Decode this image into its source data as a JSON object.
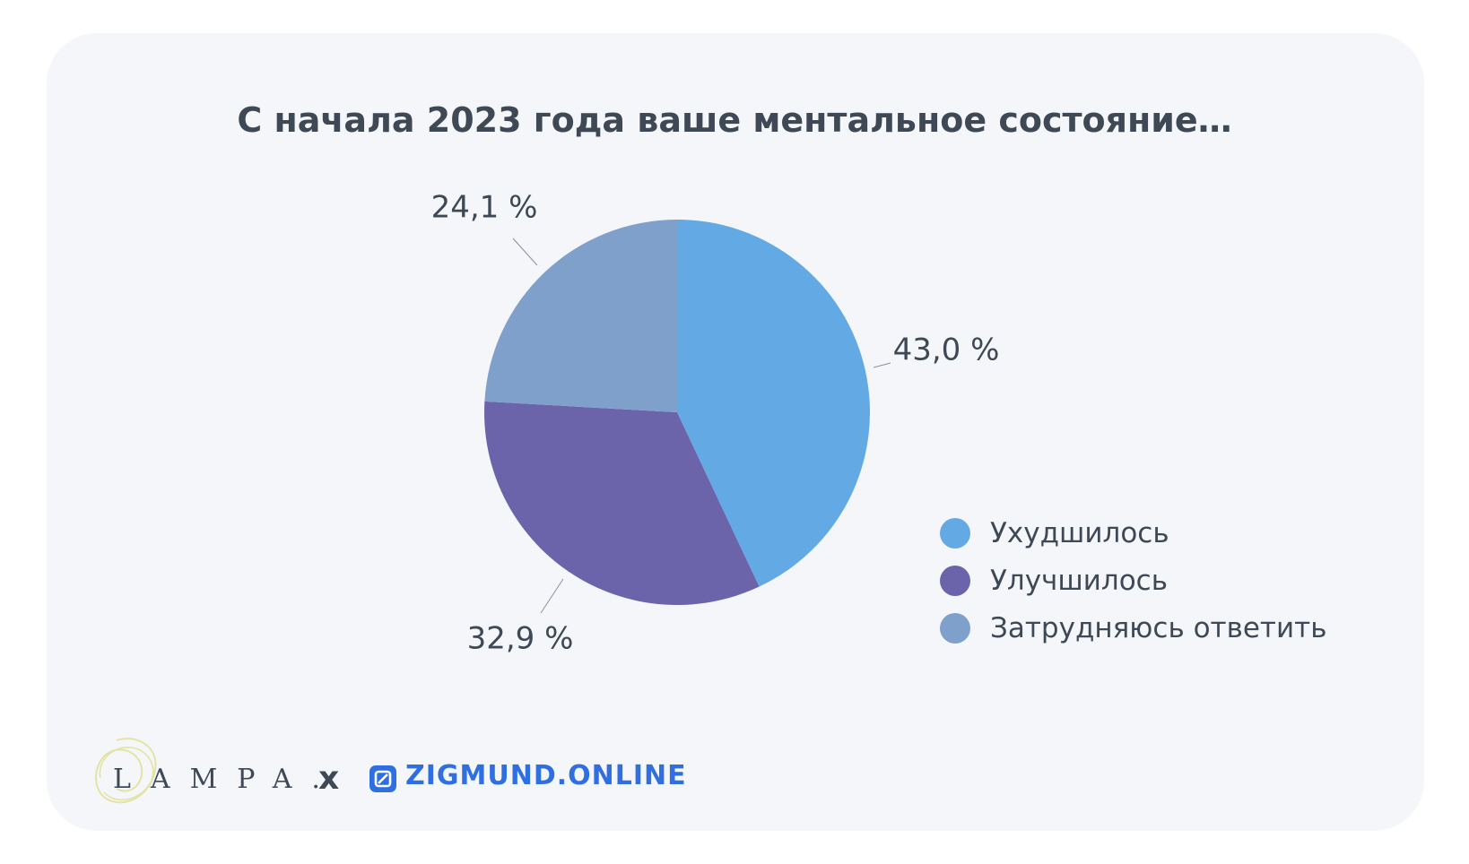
{
  "chart_data": {
    "type": "pie",
    "title": "С начала 2023 года ваше ментальное состояние…",
    "series": [
      {
        "name": "Ухудшилось",
        "value": 43.0,
        "label": "43,0 %",
        "color": "#63a9e3"
      },
      {
        "name": "Улучшилось",
        "value": 32.9,
        "label": "32,9 %",
        "color": "#6b64aa"
      },
      {
        "name": "Затрудняюсь ответить",
        "value": 24.1,
        "label": "24,1 %",
        "color": "#7fa0cb"
      }
    ],
    "legend_position": "right"
  },
  "legend": {
    "items": [
      {
        "label": "Ухудшилось",
        "color": "#63a9e3"
      },
      {
        "label": "Улучшилось",
        "color": "#6b64aa"
      },
      {
        "label": "Затрудняюсь ответить",
        "color": "#7fa0cb"
      }
    ]
  },
  "footer": {
    "lampa_logo": "LAMPA.",
    "separator": "x",
    "zigmund_logo": "ZIGMUND.ONLINE"
  },
  "colors": {
    "background": "#f5f6fa",
    "text": "#3f4956",
    "zigmund_brand": "#2f6fe0"
  }
}
